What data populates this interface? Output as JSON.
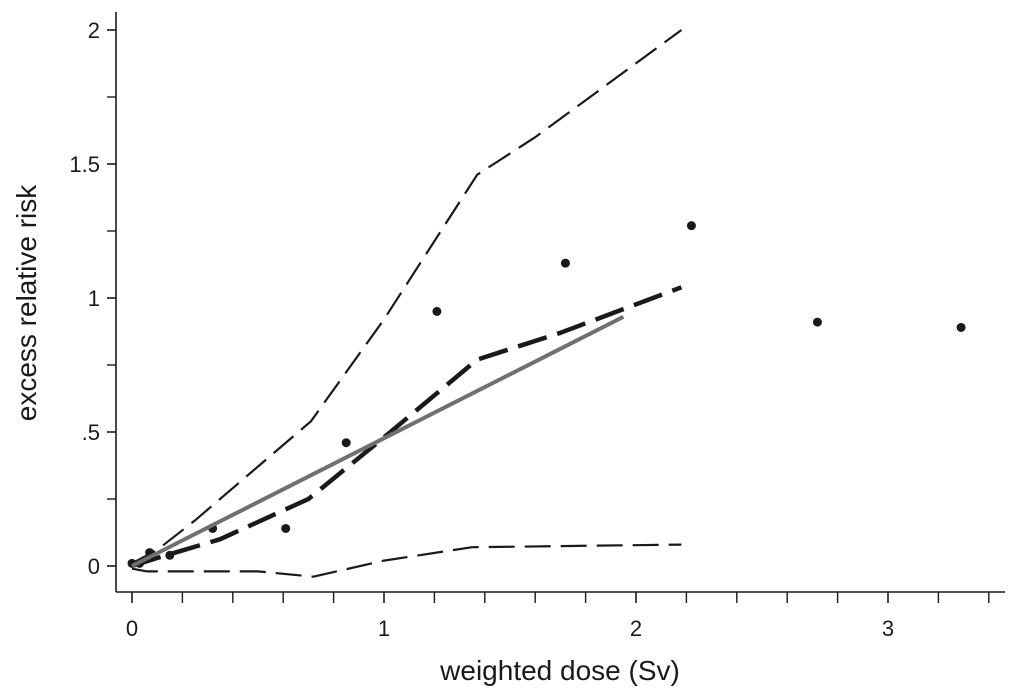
{
  "chart_data": {
    "type": "line",
    "xlabel": "weighted  dose (Sv)",
    "ylabel": "excess relative risk",
    "xlim": [
      -0.05,
      3.45
    ],
    "ylim": [
      -0.1,
      2.06
    ],
    "grid": false,
    "x_ticks": [
      {
        "value": 0,
        "label": "0"
      },
      {
        "value": 1,
        "label": "1"
      },
      {
        "value": 2,
        "label": "2"
      },
      {
        "value": 3,
        "label": "3"
      }
    ],
    "x_minor_ticks": [
      0.2,
      0.4,
      0.6,
      0.8,
      1.2,
      1.4,
      1.6,
      1.8,
      2.2,
      2.4,
      2.6,
      2.8,
      3.2,
      3.4
    ],
    "y_ticks": [
      {
        "value": 0,
        "label": "0"
      },
      {
        "value": 0.5,
        "label": ".5"
      },
      {
        "value": 1,
        "label": "1"
      },
      {
        "value": 1.5,
        "label": "1.5"
      },
      {
        "value": 2,
        "label": "2"
      }
    ],
    "y_minor_ticks": [
      0.25,
      0.75,
      1.25,
      1.75
    ],
    "series": [
      {
        "style": "points",
        "color": "#1a1a1a",
        "points": [
          {
            "x": 0.0,
            "y": 0.01
          },
          {
            "x": 0.03,
            "y": 0.01
          },
          {
            "x": 0.07,
            "y": 0.05
          },
          {
            "x": 0.15,
            "y": 0.04
          },
          {
            "x": 0.32,
            "y": 0.14
          },
          {
            "x": 0.61,
            "y": 0.14
          },
          {
            "x": 0.85,
            "y": 0.46
          },
          {
            "x": 1.21,
            "y": 0.95
          },
          {
            "x": 1.72,
            "y": 1.13
          },
          {
            "x": 2.22,
            "y": 1.27
          },
          {
            "x": 2.72,
            "y": 0.91
          },
          {
            "x": 3.29,
            "y": 0.89
          }
        ]
      },
      {
        "style": "thick-dashed",
        "color": "#1a1a1a",
        "points": [
          {
            "x": 0.0,
            "y": 0.0
          },
          {
            "x": 0.1,
            "y": 0.03
          },
          {
            "x": 0.35,
            "y": 0.1
          },
          {
            "x": 0.7,
            "y": 0.25
          },
          {
            "x": 1.0,
            "y": 0.48
          },
          {
            "x": 1.37,
            "y": 0.77
          },
          {
            "x": 1.7,
            "y": 0.87
          },
          {
            "x": 2.18,
            "y": 1.04
          }
        ]
      },
      {
        "style": "thin-dashed",
        "color": "#1a1a1a",
        "points": [
          {
            "x": 0.0,
            "y": 0.01
          },
          {
            "x": 0.1,
            "y": 0.06
          },
          {
            "x": 0.25,
            "y": 0.17
          },
          {
            "x": 0.71,
            "y": 0.54
          },
          {
            "x": 1.0,
            "y": 0.92
          },
          {
            "x": 1.37,
            "y": 1.46
          },
          {
            "x": 1.6,
            "y": 1.6
          },
          {
            "x": 2.18,
            "y": 2.0
          }
        ]
      },
      {
        "style": "thin-dashed",
        "color": "#1a1a1a",
        "points": [
          {
            "x": 0.0,
            "y": -0.01
          },
          {
            "x": 0.06,
            "y": -0.02
          },
          {
            "x": 0.2,
            "y": -0.02
          },
          {
            "x": 0.5,
            "y": -0.02
          },
          {
            "x": 0.72,
            "y": -0.04
          },
          {
            "x": 1.0,
            "y": 0.02
          },
          {
            "x": 1.35,
            "y": 0.07
          },
          {
            "x": 2.18,
            "y": 0.08
          }
        ]
      },
      {
        "style": "solid",
        "color": "#707070",
        "points": [
          {
            "x": 0.0,
            "y": 0.0
          },
          {
            "x": 1.95,
            "y": 0.93
          }
        ]
      }
    ]
  }
}
